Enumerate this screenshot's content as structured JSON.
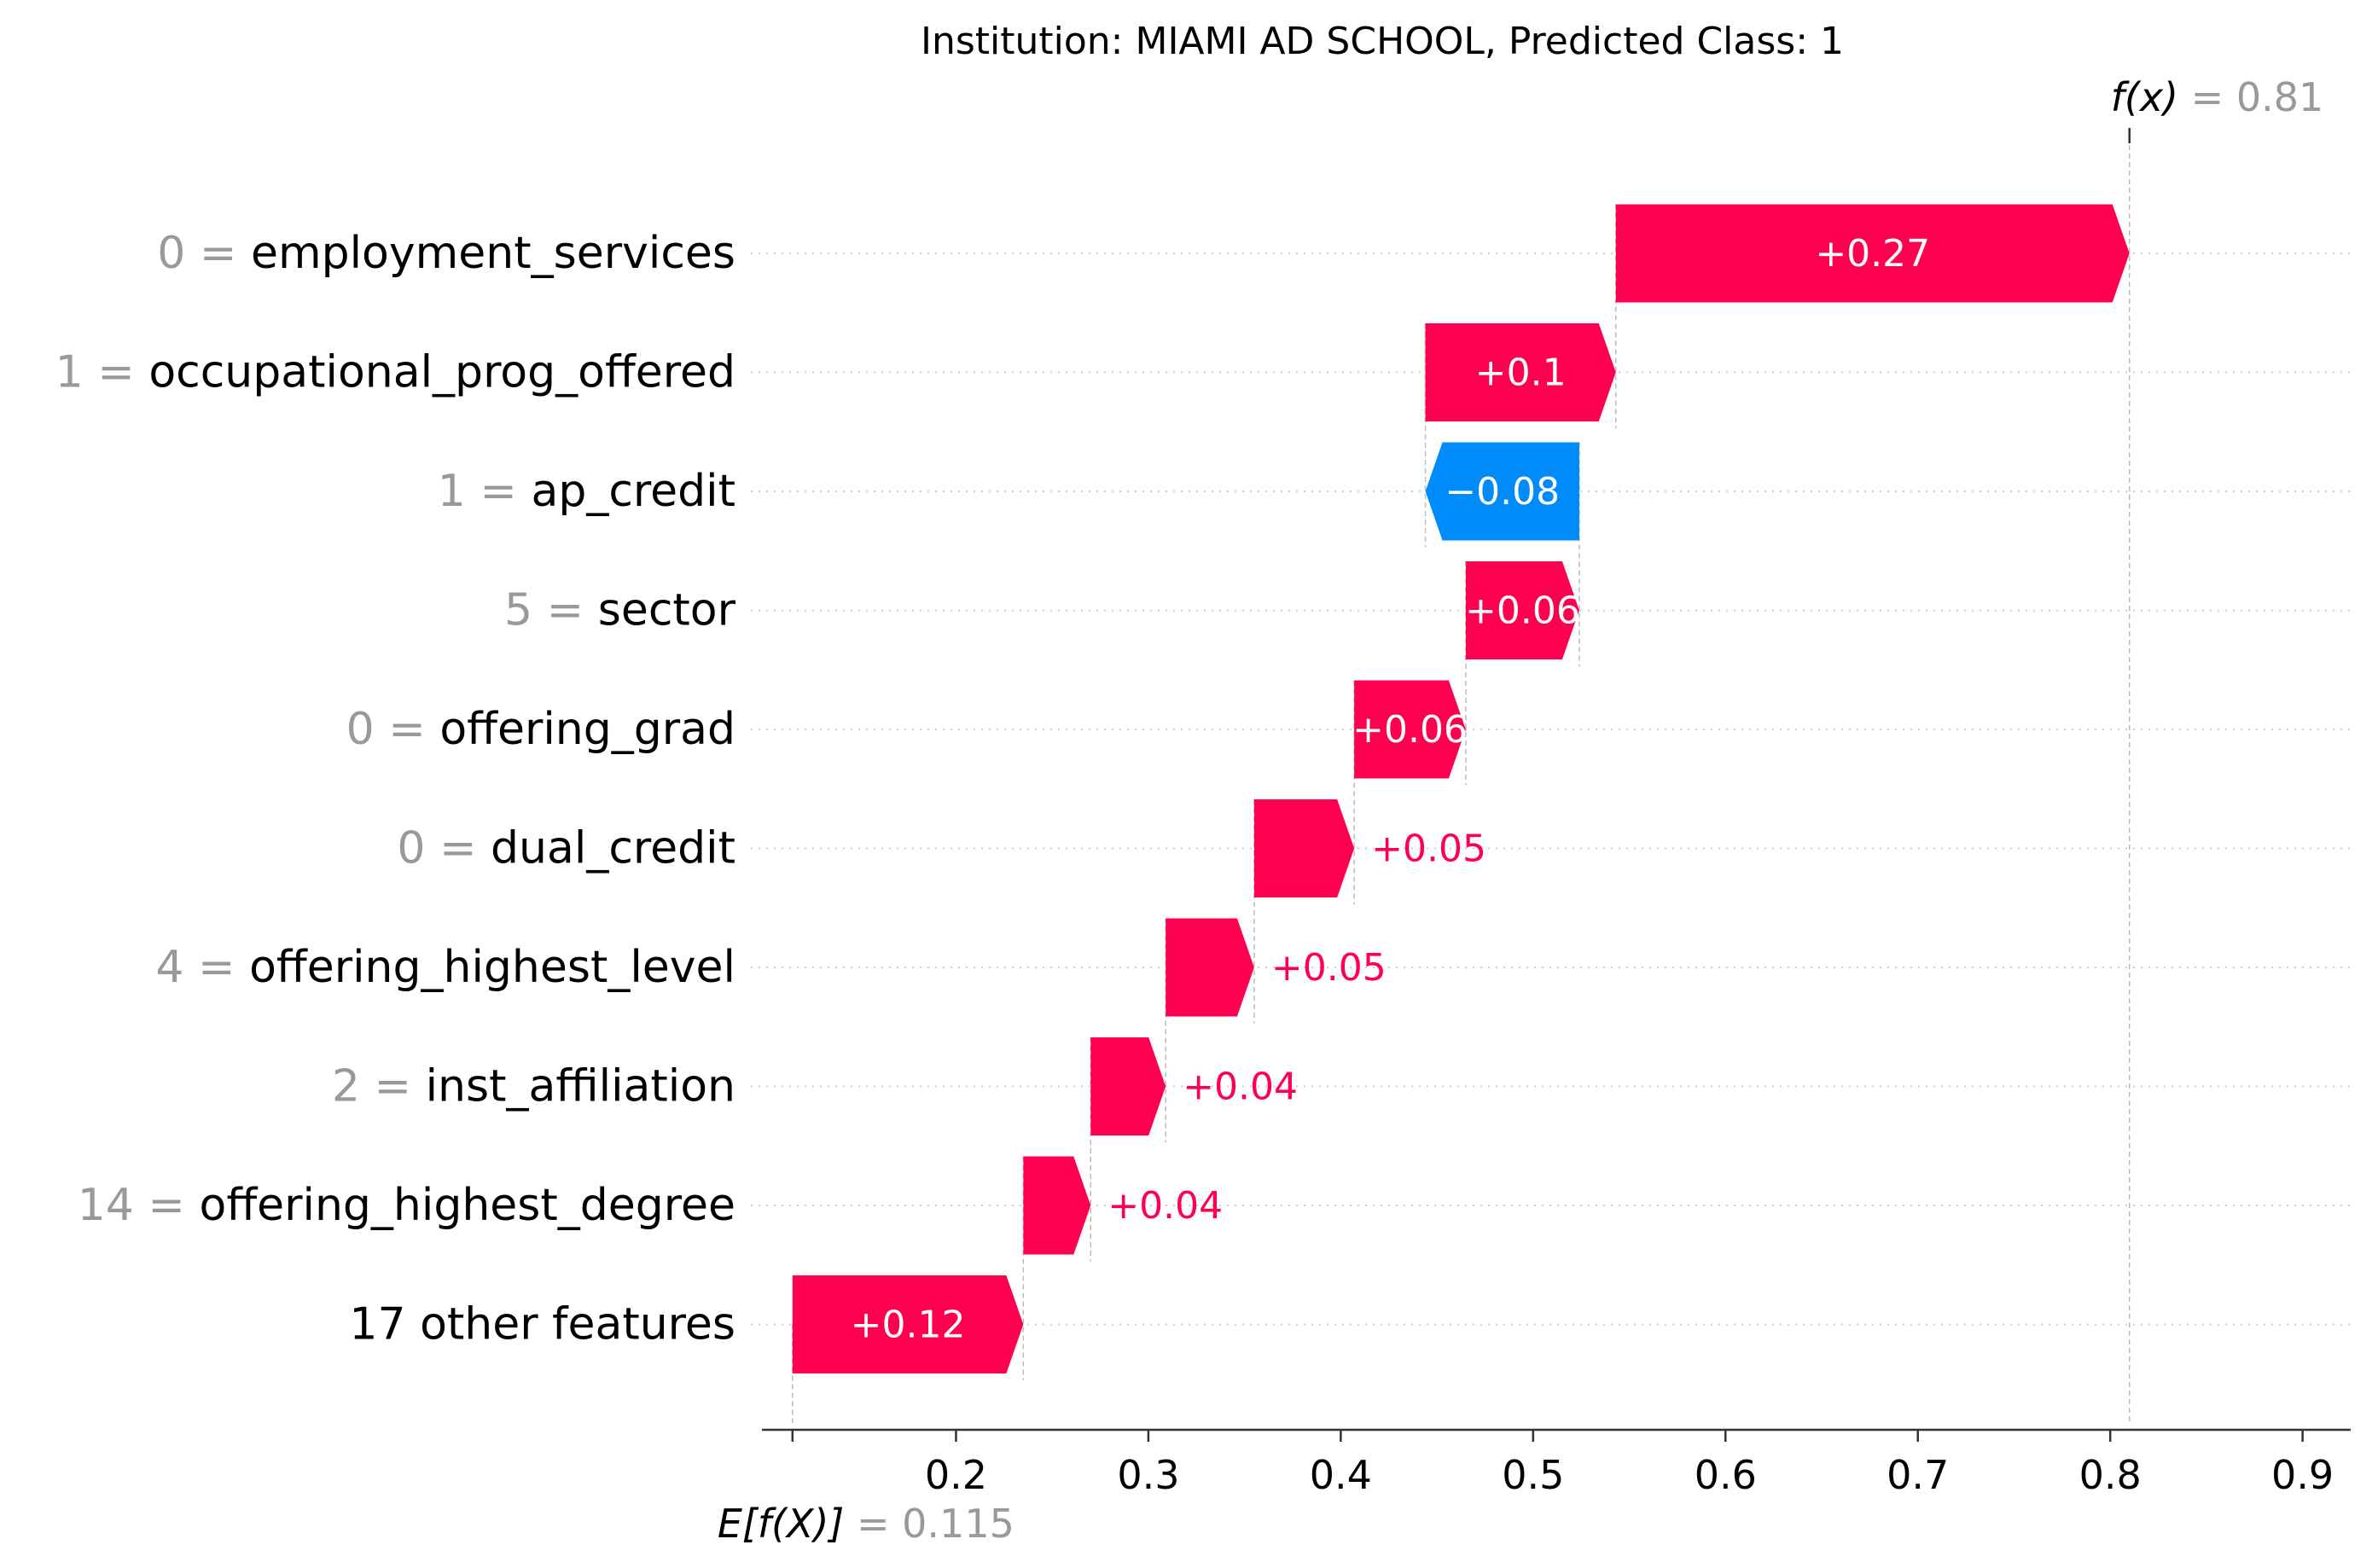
{
  "chart_data": {
    "type": "waterfall",
    "title": "Institution: MIAMI AD SCHOOL, Predicted Class: 1",
    "base_value": 0.115,
    "base_value_label": "0.115",
    "output_value": 0.81,
    "output_value_label": "0.81",
    "fx_label": "f(x)",
    "efx_label": "E[f(X)]",
    "xlim": [
      0.1,
      0.925
    ],
    "xticks": [
      0.2,
      0.3,
      0.4,
      0.5,
      0.6,
      0.7,
      0.8,
      0.9
    ],
    "xtick_labels": [
      "0.2",
      "0.3",
      "0.4",
      "0.5",
      "0.6",
      "0.7",
      "0.8",
      "0.9"
    ],
    "colors": {
      "positive": "#ff0051",
      "negative": "#008bfb",
      "value_gray": "#999999",
      "axis": "#333333"
    },
    "features": [
      {
        "value": "0",
        "name": "employment_services",
        "start": 0.543,
        "end": 0.81,
        "label": "+0.27"
      },
      {
        "value": "1",
        "name": "occupational_prog_offered",
        "start": 0.444,
        "end": 0.543,
        "label": "+0.1"
      },
      {
        "value": "1",
        "name": "ap_credit",
        "start": 0.524,
        "end": 0.444,
        "label": "−0.08"
      },
      {
        "value": "5",
        "name": "sector",
        "start": 0.465,
        "end": 0.524,
        "label": "+0.06"
      },
      {
        "value": "0",
        "name": "offering_grad",
        "start": 0.407,
        "end": 0.465,
        "label": "+0.06"
      },
      {
        "value": "0",
        "name": "dual_credit",
        "start": 0.355,
        "end": 0.407,
        "label": "+0.05"
      },
      {
        "value": "4",
        "name": "offering_highest_level",
        "start": 0.309,
        "end": 0.355,
        "label": "+0.05"
      },
      {
        "value": "2",
        "name": "inst_affiliation",
        "start": 0.27,
        "end": 0.309,
        "label": "+0.04"
      },
      {
        "value": "14",
        "name": "offering_highest_degree",
        "start": 0.235,
        "end": 0.27,
        "label": "+0.04"
      },
      {
        "value": "",
        "name": "17 other features",
        "start": 0.115,
        "end": 0.235,
        "label": "+0.12"
      }
    ]
  }
}
